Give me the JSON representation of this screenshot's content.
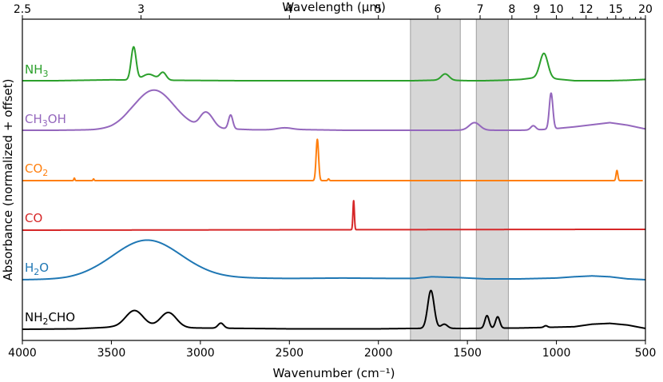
{
  "chart_data": {
    "type": "line",
    "title": "",
    "xlabel": "Wavenumber (cm⁻¹)",
    "ylabel": "Absorbance (normalized + offset)",
    "x2label": "Wavelength (μm)",
    "xlim": [
      4000,
      500
    ],
    "x_ticks": [
      4000,
      3500,
      3000,
      2500,
      2000,
      1500,
      1000,
      500
    ],
    "x2_ticks": [
      2.5,
      3,
      4,
      5,
      6,
      7,
      8,
      9,
      10,
      12,
      15,
      20
    ],
    "x2_minor_ticks": [
      11,
      13,
      14,
      16,
      17,
      18,
      19
    ],
    "shaded_bands": [
      {
        "from": 1820,
        "to": 1540
      },
      {
        "from": 1450,
        "to": 1270
      }
    ],
    "colors": {
      "NH3": "#2ca02c",
      "CH3OH": "#9467bd",
      "CO2": "#ff7f0e",
      "CO": "#d62728",
      "H2O": "#1f77b4",
      "NH2CHO": "#000000"
    },
    "series": [
      {
        "key": "NH3",
        "name": "NH3",
        "label_main": "NH",
        "label_sub": "3",
        "label_tail": "",
        "offset": 5,
        "baseline_x": [
          4000,
          3900,
          3800,
          3500,
          3200,
          2800,
          2400,
          2000,
          1800,
          1700,
          1600,
          1500,
          1400,
          1300,
          1200,
          1100,
          1000,
          900,
          800,
          700,
          600,
          500
        ],
        "baseline_y": [
          0.02,
          0.02,
          0.02,
          0.04,
          0.03,
          0.02,
          0.02,
          0.02,
          0.02,
          0.03,
          0.03,
          0.02,
          0.02,
          0.03,
          0.05,
          0.1,
          0.06,
          0.02,
          0.02,
          0.02,
          0.03,
          0.05
        ],
        "peaks": [
          {
            "center": 3375,
            "height": 0.78,
            "width": 14
          },
          {
            "center": 3290,
            "height": 0.14,
            "width": 35
          },
          {
            "center": 3210,
            "height": 0.18,
            "width": 18
          },
          {
            "center": 1625,
            "height": 0.15,
            "width": 22
          },
          {
            "center": 1070,
            "height": 0.58,
            "width": 22
          }
        ]
      },
      {
        "key": "CH3OH",
        "name": "CH3OH",
        "label_main": "CH",
        "label_sub": "3",
        "label_tail": "OH",
        "offset": 4,
        "baseline_x": [
          4000,
          3800,
          3600,
          3500,
          3400,
          3000,
          2700,
          2600,
          2500,
          2200,
          2000,
          1800,
          1600,
          1500,
          1200,
          1100,
          1000,
          900,
          800,
          700,
          600,
          500
        ],
        "baseline_y": [
          0.02,
          0.02,
          0.03,
          0.05,
          0.1,
          0.08,
          0.03,
          0.03,
          0.04,
          0.02,
          0.02,
          0.02,
          0.02,
          0.02,
          0.02,
          0.03,
          0.06,
          0.1,
          0.15,
          0.2,
          0.14,
          0.05
        ],
        "peaks": [
          {
            "center": 3260,
            "height": 0.88,
            "width": 110
          },
          {
            "center": 2985,
            "height": 0.18,
            "width": 25
          },
          {
            "center": 2950,
            "height": 0.25,
            "width": 30
          },
          {
            "center": 2830,
            "height": 0.33,
            "width": 12
          },
          {
            "center": 2530,
            "height": 0.04,
            "width": 40
          },
          {
            "center": 1460,
            "height": 0.18,
            "width": 30
          },
          {
            "center": 1130,
            "height": 0.1,
            "width": 14
          },
          {
            "center": 1030,
            "height": 0.85,
            "width": 10
          }
        ]
      },
      {
        "key": "CO2",
        "name": "CO2",
        "label_main": "CO",
        "label_sub": "2",
        "label_tail": "",
        "offset": 3,
        "baseline_x": [
          4000,
          500
        ],
        "baseline_y": [
          0.0,
          0.0
        ],
        "peaks": [
          {
            "center": 3708,
            "height": 0.06,
            "width": 3
          },
          {
            "center": 3600,
            "height": 0.04,
            "width": 3
          },
          {
            "center": 2343,
            "height": 0.98,
            "width": 7
          },
          {
            "center": 2280,
            "height": 0.04,
            "width": 4
          },
          {
            "center": 660,
            "height": 0.24,
            "width": 5
          }
        ],
        "end_x": 515
      },
      {
        "key": "CO",
        "name": "CO",
        "label_main": "CO",
        "label_sub": "",
        "label_tail": "",
        "offset": 2,
        "baseline_x": [
          4000,
          500
        ],
        "baseline_y": [
          0.0,
          0.02
        ],
        "peaks": [
          {
            "center": 2139,
            "height": 0.69,
            "width": 4
          }
        ]
      },
      {
        "key": "H2O",
        "name": "H2O",
        "label_main": "H",
        "label_sub": "2",
        "label_tail": "O",
        "offset": 1,
        "baseline_x": [
          4000,
          3750,
          3600,
          3000,
          2500,
          2200,
          1900,
          1800,
          1700,
          1550,
          1400,
          1200,
          1000,
          900,
          800,
          700,
          600,
          500
        ],
        "baseline_y": [
          0.0,
          0.01,
          0.03,
          0.05,
          0.03,
          0.04,
          0.03,
          0.03,
          0.07,
          0.05,
          0.02,
          0.02,
          0.04,
          0.07,
          0.09,
          0.07,
          0.02,
          0.0
        ],
        "peaks": [
          {
            "center": 3300,
            "height": 0.9,
            "width": 190
          }
        ]
      },
      {
        "key": "NH2CHO",
        "name": "NH2CHO",
        "label_main": "NH",
        "label_sub": "2",
        "label_tail": "CHO",
        "offset": 0,
        "baseline_x": [
          4000,
          3700,
          3500,
          3000,
          2500,
          2000,
          1800,
          1500,
          1200,
          1000,
          900,
          800,
          700,
          600,
          500
        ],
        "baseline_y": [
          0.0,
          0.01,
          0.05,
          0.03,
          0.01,
          0.01,
          0.02,
          0.02,
          0.03,
          0.05,
          0.06,
          0.12,
          0.14,
          0.1,
          0.02
        ],
        "peaks": [
          {
            "center": 3370,
            "height": 0.4,
            "width": 50
          },
          {
            "center": 3180,
            "height": 0.36,
            "width": 45
          },
          {
            "center": 2885,
            "height": 0.12,
            "width": 16
          },
          {
            "center": 1705,
            "height": 0.9,
            "width": 18
          },
          {
            "center": 1630,
            "height": 0.1,
            "width": 18
          },
          {
            "center": 1390,
            "height": 0.3,
            "width": 12
          },
          {
            "center": 1330,
            "height": 0.27,
            "width": 12
          },
          {
            "center": 1060,
            "height": 0.04,
            "width": 10
          }
        ]
      }
    ]
  }
}
